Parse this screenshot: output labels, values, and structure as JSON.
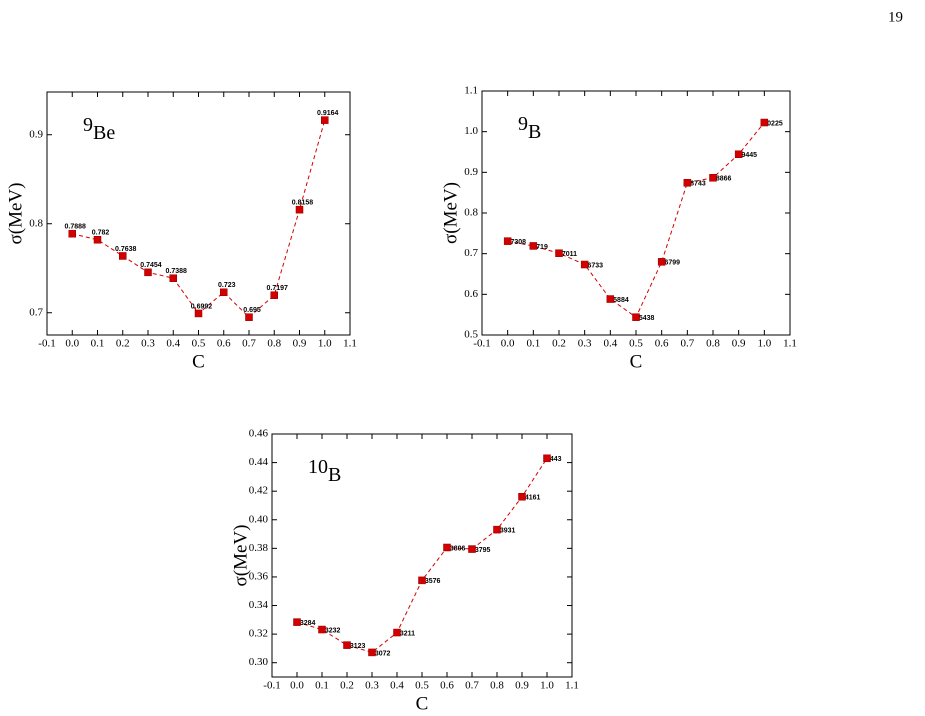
{
  "page_number": "19",
  "chart_data": [
    {
      "type": "line",
      "annotation": {
        "mass": "9",
        "symbol": "Be"
      },
      "xlabel": "C",
      "ylabel": "σ(MeV)",
      "x": [
        0,
        0.1,
        0.2,
        0.3,
        0.4,
        0.5,
        0.6,
        0.7,
        0.8,
        0.9,
        1.0
      ],
      "series": [
        {
          "color": "#d40000",
          "values": [
            0.7888,
            0.782,
            0.7638,
            0.7454,
            0.7388,
            0.6992,
            0.723,
            0.695,
            0.7197,
            0.8158,
            0.9164
          ]
        }
      ],
      "xlim": [
        -0.1,
        1.1
      ],
      "xticks": [
        -0.1,
        {
          "value": 0,
          "label": "0.0"
        },
        0.1,
        0.2,
        0.3,
        0.4,
        0.5,
        0.6,
        0.7,
        0.8,
        0.9,
        {
          "value": 1,
          "label": "1.0"
        },
        1.1
      ],
      "ylim": [
        0.675,
        0.948
      ],
      "yticks": [
        0.7,
        0.8,
        0.9
      ]
    },
    {
      "type": "line",
      "annotation": {
        "mass": "9",
        "symbol": "B"
      },
      "xlabel": "C",
      "ylabel": "σ(MeV)",
      "x": [
        0,
        0.1,
        0.2,
        0.3,
        0.4,
        0.5,
        0.6,
        0.7,
        0.8,
        0.9,
        1.0
      ],
      "series": [
        {
          "color": "#d40000",
          "values": [
            0.7308,
            0.719,
            0.7011,
            0.6733,
            0.5884,
            0.5438,
            0.6799,
            0.8743,
            0.8866,
            0.9445,
            1.0225
          ]
        }
      ],
      "xlim": [
        -0.1,
        1.1
      ],
      "xticks": [
        -0.1,
        {
          "value": 0,
          "label": "0.0"
        },
        0.1,
        0.2,
        0.3,
        0.4,
        0.5,
        0.6,
        0.7,
        0.8,
        0.9,
        {
          "value": 1,
          "label": "1.0"
        },
        1.1
      ],
      "ylim": [
        0.5,
        1.1
      ],
      "yticks": [
        0.5,
        0.6,
        0.7,
        0.8,
        0.9,
        {
          "value": 1,
          "label": "1.0"
        },
        1.1
      ]
    },
    {
      "type": "line",
      "annotation": {
        "mass": "10",
        "symbol": "B"
      },
      "xlabel": "C",
      "ylabel": "σ(MeV)",
      "x": [
        0,
        0.1,
        0.2,
        0.3,
        0.4,
        0.5,
        0.6,
        0.7,
        0.8,
        0.9,
        1.0
      ],
      "series": [
        {
          "color": "#d40000",
          "values": [
            0.3284,
            0.3232,
            0.3123,
            0.3072,
            0.3211,
            0.3576,
            0.3806,
            0.3795,
            0.3931,
            0.4161,
            0.443
          ]
        }
      ],
      "xlim": [
        -0.1,
        1.1
      ],
      "xticks": [
        -0.1,
        {
          "value": 0,
          "label": "0.0"
        },
        0.1,
        0.2,
        0.3,
        0.4,
        0.5,
        0.6,
        0.7,
        0.8,
        0.9,
        {
          "value": 1,
          "label": "1.0"
        },
        1.1
      ],
      "ylim": [
        0.29,
        0.46
      ],
      "yticks": [
        {
          "value": 0.3,
          "label": "0.30"
        },
        0.32,
        0.34,
        0.36,
        0.38,
        {
          "value": 0.4,
          "label": "0.40"
        },
        0.42,
        0.44,
        0.46
      ]
    }
  ]
}
